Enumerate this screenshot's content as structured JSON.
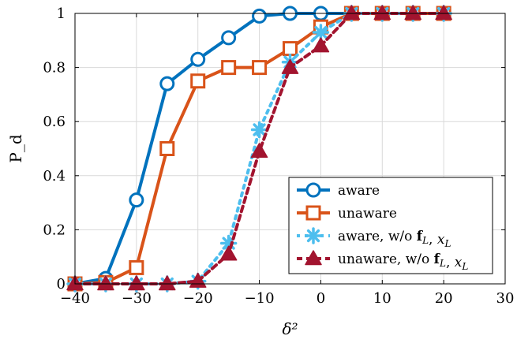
{
  "chart_data": {
    "type": "line",
    "xlabel": "δ²",
    "ylabel": "P_d",
    "xlim": [
      -40,
      30
    ],
    "ylim": [
      0,
      1
    ],
    "xticks": [
      -40,
      -30,
      -20,
      -10,
      0,
      10,
      20,
      30
    ],
    "xtick_labels": [
      "−40",
      "−30",
      "−20",
      "−10",
      "0",
      "10",
      "20",
      "30"
    ],
    "yticks": [
      0,
      0.2,
      0.4,
      0.6,
      0.8,
      1
    ],
    "ytick_labels": [
      "0",
      "0.2",
      "0.4",
      "0.6",
      "0.8",
      "1"
    ],
    "grid": true,
    "legend_position": "bottom-right",
    "series": [
      {
        "name": "aware",
        "color": "#0072BD",
        "marker": "circle",
        "line_style": "solid",
        "x": [
          -40,
          -35,
          -30,
          -25,
          -20,
          -15,
          -10,
          -5,
          0,
          5,
          10,
          15,
          20
        ],
        "y": [
          0,
          0.02,
          0.31,
          0.74,
          0.83,
          0.91,
          0.99,
          1.0,
          1.0,
          1.0,
          1.0,
          1.0,
          1.0
        ]
      },
      {
        "name": "unaware",
        "color": "#D95319",
        "marker": "square",
        "line_style": "solid",
        "x": [
          -40,
          -35,
          -30,
          -25,
          -20,
          -15,
          -10,
          -5,
          0,
          5,
          10,
          15,
          20
        ],
        "y": [
          0,
          0.005,
          0.06,
          0.5,
          0.75,
          0.8,
          0.8,
          0.87,
          0.95,
          1.0,
          1.0,
          1.0,
          1.0
        ]
      },
      {
        "name": "aware, w/o f_L, x_L",
        "color": "#4DBEEE",
        "marker": "asterisk",
        "line_style": "dotted",
        "x": [
          -40,
          -35,
          -30,
          -25,
          -20,
          -15,
          -10,
          -5,
          0,
          5,
          10,
          15,
          20
        ],
        "y": [
          0,
          0,
          0,
          0,
          0.01,
          0.15,
          0.57,
          0.82,
          0.93,
          1.0,
          1.0,
          1.0,
          1.0
        ]
      },
      {
        "name": "unaware, w/o f_L, x_L",
        "color": "#A2142F",
        "marker": "triangle",
        "line_style": "dashed",
        "x": [
          -40,
          -35,
          -30,
          -25,
          -20,
          -15,
          -10,
          -5,
          0,
          5,
          10,
          15,
          20
        ],
        "y": [
          0,
          0,
          0,
          0,
          0.01,
          0.11,
          0.49,
          0.8,
          0.88,
          1.0,
          1.0,
          1.0,
          1.0
        ]
      }
    ]
  }
}
